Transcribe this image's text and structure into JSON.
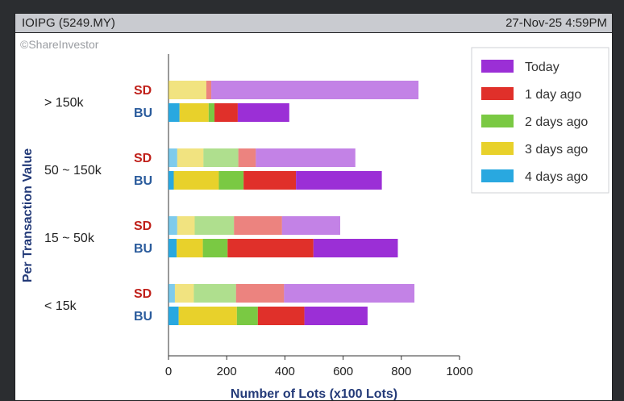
{
  "header": {
    "ticker": "IOIPG (5249.MY)",
    "timestamp": "27-Nov-25 4:59PM",
    "watermark": "©ShareInvestor"
  },
  "chart_data": {
    "type": "bar",
    "orientation": "horizontal",
    "stacked": true,
    "title": "",
    "xlabel": "Number of Lots (x100 Lots)",
    "ylabel": "Per Transaction Value",
    "xlim": [
      0,
      1000
    ],
    "xticks": [
      0,
      200,
      400,
      600,
      800,
      1000
    ],
    "grid": false,
    "legend_position": "top-right",
    "side_labels": {
      "sd": "SD",
      "bu": "BU"
    },
    "categories": [
      "> 150k",
      "50 ~ 150k",
      "15 ~ 50k",
      "< 15k"
    ],
    "series": [
      {
        "name": "4 days ago",
        "color": "#29a8e0",
        "sd": [
          0,
          30,
          30,
          22
        ],
        "bu": [
          38,
          18,
          28,
          35
        ]
      },
      {
        "name": "3 days ago",
        "color": "#e8d12b",
        "sd": [
          130,
          90,
          60,
          65
        ],
        "bu": [
          100,
          155,
          90,
          200
        ]
      },
      {
        "name": "2 days ago",
        "color": "#7ac943",
        "sd": [
          0,
          120,
          135,
          145
        ],
        "bu": [
          20,
          85,
          85,
          72
        ]
      },
      {
        "name": "1 day ago",
        "color": "#e0302a",
        "sd": [
          17,
          60,
          165,
          165
        ],
        "bu": [
          80,
          180,
          295,
          160
        ]
      },
      {
        "name": "Today",
        "color": "#9b2fd6",
        "sd": [
          712,
          342,
          200,
          448
        ],
        "bu": [
          177,
          295,
          290,
          217
        ]
      }
    ],
    "legend_order": [
      "Today",
      "1 day ago",
      "2 days ago",
      "3 days ago",
      "4 days ago"
    ]
  }
}
